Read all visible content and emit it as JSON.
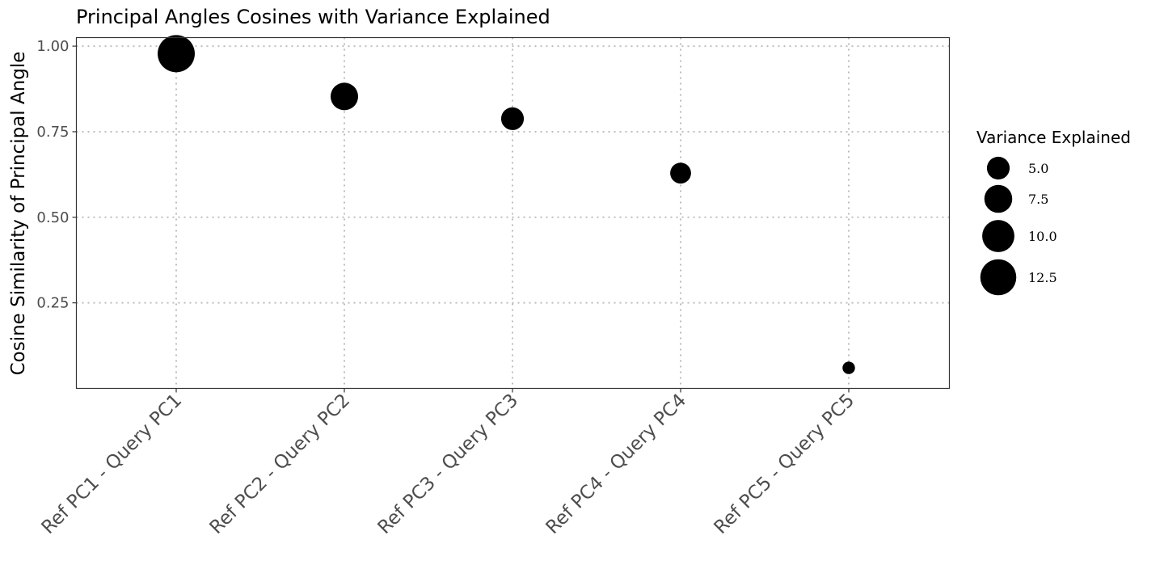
{
  "chart_data": {
    "type": "scatter",
    "title": "Principal Angles Cosines with Variance Explained",
    "xlabel": "",
    "ylabel": "Cosine Similarity of Principal Angle",
    "categories": [
      "Ref PC1 - Query PC1",
      "Ref PC2 - Query PC2",
      "Ref PC3 - Query PC3",
      "Ref PC4 - Query PC4",
      "Ref PC5 - Query PC5"
    ],
    "y_ticks": [
      {
        "value": 0.25,
        "label": "0.25"
      },
      {
        "value": 0.5,
        "label": "0.50"
      },
      {
        "value": 0.75,
        "label": "0.75"
      },
      {
        "value": 1.0,
        "label": "1.00"
      }
    ],
    "ylim": [
      0.0,
      1.025
    ],
    "grid": true,
    "point_color": "#000000",
    "points": [
      {
        "category": "Ref PC1 - Query PC1",
        "y": 0.978,
        "variance_explained": 13.3
      },
      {
        "category": "Ref PC2 - Query PC2",
        "y": 0.853,
        "variance_explained": 7.3
      },
      {
        "category": "Ref PC3 - Query PC3",
        "y": 0.788,
        "variance_explained": 5.0
      },
      {
        "category": "Ref PC4 - Query PC4",
        "y": 0.629,
        "variance_explained": 4.2
      },
      {
        "category": "Ref PC5 - Query PC5",
        "y": 0.06,
        "variance_explained": 1.5
      }
    ],
    "legend": {
      "title": "Variance Explained",
      "placement": "right",
      "entries": [
        {
          "value": 5.0,
          "label": "5.0"
        },
        {
          "value": 7.5,
          "label": "7.5"
        },
        {
          "value": 10.0,
          "label": "10.0"
        },
        {
          "value": 12.5,
          "label": "12.5"
        }
      ]
    }
  }
}
